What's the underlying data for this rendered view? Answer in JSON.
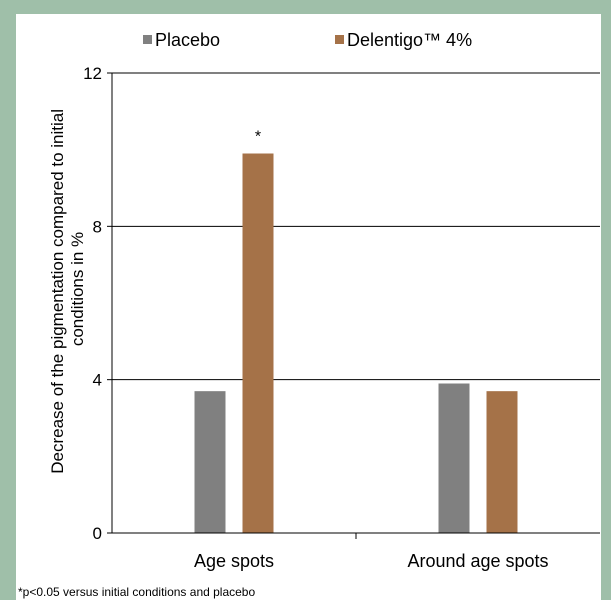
{
  "chart_data": {
    "type": "bar",
    "categories": [
      "Age spots",
      "Around age spots"
    ],
    "series": [
      {
        "name": "Placebo",
        "values": [
          3.7,
          3.9
        ],
        "color": "#808080"
      },
      {
        "name": "Delentigo™ 4%",
        "values": [
          9.9,
          3.7
        ],
        "color": "#a57248"
      }
    ],
    "ylabel": "Decrease of the pigmentation compared to initial conditions in %",
    "ylabel_lines": [
      "Decrease of the pigmentation compared to initial",
      "conditions in %"
    ],
    "ylim": [
      0,
      12
    ],
    "yticks": [
      0,
      4,
      8,
      12
    ],
    "grid": true,
    "legend_position": "top",
    "annotations": [
      {
        "text": "*",
        "category": "Age spots",
        "series": "Delentigo™ 4%"
      }
    ],
    "footnote": "*p<0.05 versus initial conditions and placebo"
  }
}
